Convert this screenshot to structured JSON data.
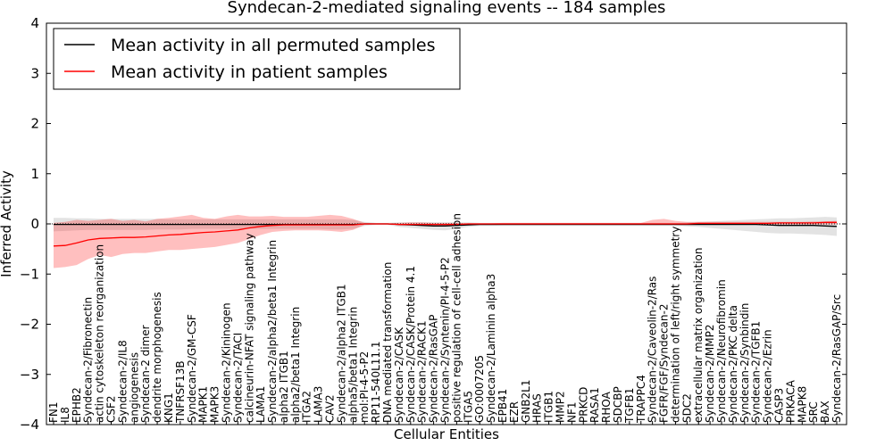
{
  "chart_data": {
    "type": "line",
    "title": "Syndecan-2-mediated signaling events -- 184 samples",
    "xlabel": "Cellular Entities",
    "ylabel": "Inferred Activity",
    "ylim": [
      -4,
      4
    ],
    "yticks": [
      -4,
      -3,
      -2,
      -1,
      0,
      1,
      2,
      3,
      4
    ],
    "grid": false,
    "legend_position": "top-left",
    "categories": [
      "FN1",
      "IL8",
      "EPHB2",
      "Syndecan-2/Fibronectin",
      "actin cytoskeleton reorganization",
      "CSF2",
      "Syndecan-2/IL8",
      "angiogenesis",
      "Syndecan-2 dimer",
      "dendrite morphogenesis",
      "KNG1",
      "TNFRSF13B",
      "Syndecan-2/GM-CSF",
      "MAPK1",
      "MAPK3",
      "Syndecan-2/Kininogen",
      "Syndecan-2/TACI",
      "calcineurin-NFAT signaling pathway",
      "LAMA1",
      "Syndecan-2/alpha2/beta1 Integrin",
      "alpha2 ITGB1",
      "alpha2/beta1 Integrin",
      "ITGA2",
      "LAMA3",
      "CAV2",
      "Syndecan-2/alpha2 ITGB1",
      "alpha5/beta1 Integrin",
      "mol:PI-4-5-P2",
      "RP11-540L11.1",
      "DNA mediated transformation",
      "Syndecan-2/CASK",
      "Syndecan-2/CASK/Protein 4.1",
      "Syndecan-2/RACK1",
      "Syndecan-2/RasGAP",
      "Syndecan-2/Syntenin/PI-4-5-P2",
      "positive regulation of cell-cell adhesion",
      "ITGA5",
      "GO:0007205",
      "Syndecan-2/Laminin alpha3",
      "EPB41",
      "EZR",
      "GNB2L1",
      "HRAS",
      "ITGB1",
      "MMP2",
      "NF1",
      "PRKCD",
      "RASA1",
      "RHOA",
      "SDCBP",
      "TGFB1",
      "TRAPPC4",
      "Syndecan-2/Caveolin-2/Ras",
      "FGFR/FGF/Syndecan-2",
      "determination of left/right symmetry",
      "SDC2",
      "extracellular matrix organization",
      "Syndecan-2/MMP2",
      "Syndecan-2/Neurofibromin",
      "Syndecan-2/PKC delta",
      "Syndecan-2/Synbindin",
      "Syndecan-2/TGFB1",
      "Syndecan-2/Ezrin",
      "CASP3",
      "PRKACA",
      "MAPK8",
      "SRC",
      "BAX",
      "Syndecan-2/RasGAP/Src"
    ],
    "series": [
      {
        "name": "Mean activity in all permuted samples",
        "color": "#000000",
        "values": [
          -0.01,
          -0.01,
          -0.01,
          -0.01,
          -0.01,
          -0.01,
          -0.01,
          -0.01,
          -0.01,
          -0.01,
          -0.01,
          -0.01,
          -0.01,
          -0.01,
          -0.01,
          -0.01,
          -0.01,
          -0.01,
          -0.01,
          -0.01,
          -0.01,
          -0.01,
          -0.01,
          -0.01,
          -0.01,
          -0.01,
          -0.01,
          0.0,
          0.0,
          0.0,
          -0.01,
          -0.02,
          -0.03,
          -0.04,
          -0.04,
          -0.03,
          -0.02,
          -0.01,
          -0.01,
          -0.01,
          -0.01,
          -0.01,
          -0.01,
          -0.01,
          -0.01,
          -0.01,
          -0.01,
          -0.01,
          -0.01,
          -0.01,
          -0.01,
          -0.01,
          -0.01,
          -0.01,
          -0.01,
          -0.01,
          -0.01,
          -0.01,
          -0.01,
          -0.01,
          -0.01,
          -0.01,
          -0.02,
          -0.03,
          -0.03,
          -0.03,
          -0.03,
          -0.04,
          -0.05
        ],
        "lower": [
          -0.15,
          -0.14,
          -0.13,
          -0.12,
          -0.12,
          -0.12,
          -0.12,
          -0.12,
          -0.12,
          -0.11,
          -0.11,
          -0.11,
          -0.1,
          -0.1,
          -0.1,
          -0.1,
          -0.1,
          -0.1,
          -0.1,
          -0.1,
          -0.1,
          -0.1,
          -0.1,
          -0.1,
          -0.11,
          -0.11,
          -0.1,
          -0.04,
          -0.02,
          -0.02,
          -0.06,
          -0.08,
          -0.1,
          -0.12,
          -0.13,
          -0.1,
          -0.06,
          -0.04,
          -0.04,
          -0.03,
          -0.03,
          -0.03,
          -0.03,
          -0.03,
          -0.03,
          -0.03,
          -0.03,
          -0.03,
          -0.03,
          -0.03,
          -0.03,
          -0.03,
          -0.03,
          -0.03,
          -0.03,
          -0.05,
          -0.06,
          -0.08,
          -0.1,
          -0.12,
          -0.14,
          -0.16,
          -0.18,
          -0.19,
          -0.19,
          -0.2,
          -0.21,
          -0.22,
          -0.24
        ],
        "upper": [
          0.12,
          0.12,
          0.11,
          0.11,
          0.1,
          0.1,
          0.1,
          0.1,
          0.1,
          0.1,
          0.09,
          0.09,
          0.09,
          0.09,
          0.09,
          0.09,
          0.09,
          0.09,
          0.09,
          0.09,
          0.09,
          0.09,
          0.09,
          0.09,
          0.09,
          0.09,
          0.08,
          0.04,
          0.02,
          0.02,
          0.03,
          0.03,
          0.03,
          0.03,
          0.03,
          0.03,
          0.03,
          0.02,
          0.02,
          0.02,
          0.02,
          0.02,
          0.02,
          0.02,
          0.02,
          0.02,
          0.02,
          0.02,
          0.02,
          0.02,
          0.02,
          0.02,
          0.02,
          0.02,
          0.02,
          0.03,
          0.04,
          0.05,
          0.06,
          0.07,
          0.08,
          0.09,
          0.1,
          0.11,
          0.11,
          0.12,
          0.13,
          0.14,
          0.13
        ]
      },
      {
        "name": "Mean activity in patient samples",
        "color": "#ff0000",
        "values": [
          -0.44,
          -0.43,
          -0.38,
          -0.32,
          -0.29,
          -0.28,
          -0.27,
          -0.27,
          -0.26,
          -0.24,
          -0.22,
          -0.21,
          -0.19,
          -0.17,
          -0.16,
          -0.14,
          -0.12,
          -0.08,
          -0.05,
          -0.03,
          -0.02,
          -0.02,
          -0.02,
          -0.02,
          -0.02,
          -0.02,
          -0.02,
          0.0,
          0.0,
          0.0,
          -0.01,
          -0.01,
          -0.01,
          -0.01,
          -0.01,
          -0.01,
          0.0,
          0.0,
          0.0,
          0.0,
          0.0,
          0.0,
          0.0,
          0.0,
          0.0,
          0.0,
          0.0,
          0.0,
          0.0,
          0.0,
          0.0,
          0.0,
          0.0,
          0.0,
          0.0,
          0.0,
          0.01,
          0.01,
          0.01,
          0.01,
          0.01,
          0.01,
          0.01,
          0.02,
          0.02,
          0.02,
          0.02,
          0.03,
          0.03
        ],
        "lower": [
          -0.88,
          -0.86,
          -0.82,
          -0.7,
          -0.62,
          -0.66,
          -0.6,
          -0.58,
          -0.58,
          -0.55,
          -0.52,
          -0.52,
          -0.5,
          -0.48,
          -0.46,
          -0.42,
          -0.38,
          -0.3,
          -0.22,
          -0.16,
          -0.14,
          -0.13,
          -0.13,
          -0.13,
          -0.14,
          -0.16,
          -0.12,
          -0.02,
          -0.01,
          -0.01,
          -0.03,
          -0.03,
          -0.03,
          -0.03,
          -0.03,
          -0.03,
          -0.02,
          -0.01,
          -0.01,
          -0.01,
          -0.01,
          -0.01,
          -0.01,
          -0.01,
          -0.01,
          -0.01,
          -0.01,
          -0.01,
          -0.01,
          -0.01,
          -0.01,
          -0.01,
          -0.01,
          -0.01,
          -0.01,
          -0.01,
          -0.01,
          -0.01,
          -0.01,
          -0.01,
          -0.01,
          -0.01,
          -0.01,
          -0.01,
          -0.01,
          -0.01,
          -0.01,
          -0.01,
          -0.01
        ],
        "upper": [
          0.02,
          0.04,
          0.08,
          0.06,
          0.08,
          0.1,
          0.06,
          0.08,
          0.05,
          0.1,
          0.12,
          0.15,
          0.18,
          0.12,
          0.1,
          0.15,
          0.18,
          0.15,
          0.15,
          0.16,
          0.14,
          0.14,
          0.14,
          0.16,
          0.18,
          0.16,
          0.1,
          0.02,
          0.01,
          0.01,
          0.02,
          0.03,
          0.03,
          0.02,
          0.02,
          0.02,
          0.01,
          0.01,
          0.01,
          0.02,
          0.02,
          0.02,
          0.02,
          0.02,
          0.02,
          0.02,
          0.02,
          0.02,
          0.02,
          0.02,
          0.02,
          0.02,
          0.08,
          0.1,
          0.06,
          0.04,
          0.04,
          0.04,
          0.04,
          0.04,
          0.04,
          0.04,
          0.04,
          0.04,
          0.04,
          0.04,
          0.05,
          0.05,
          0.06
        ]
      }
    ]
  }
}
